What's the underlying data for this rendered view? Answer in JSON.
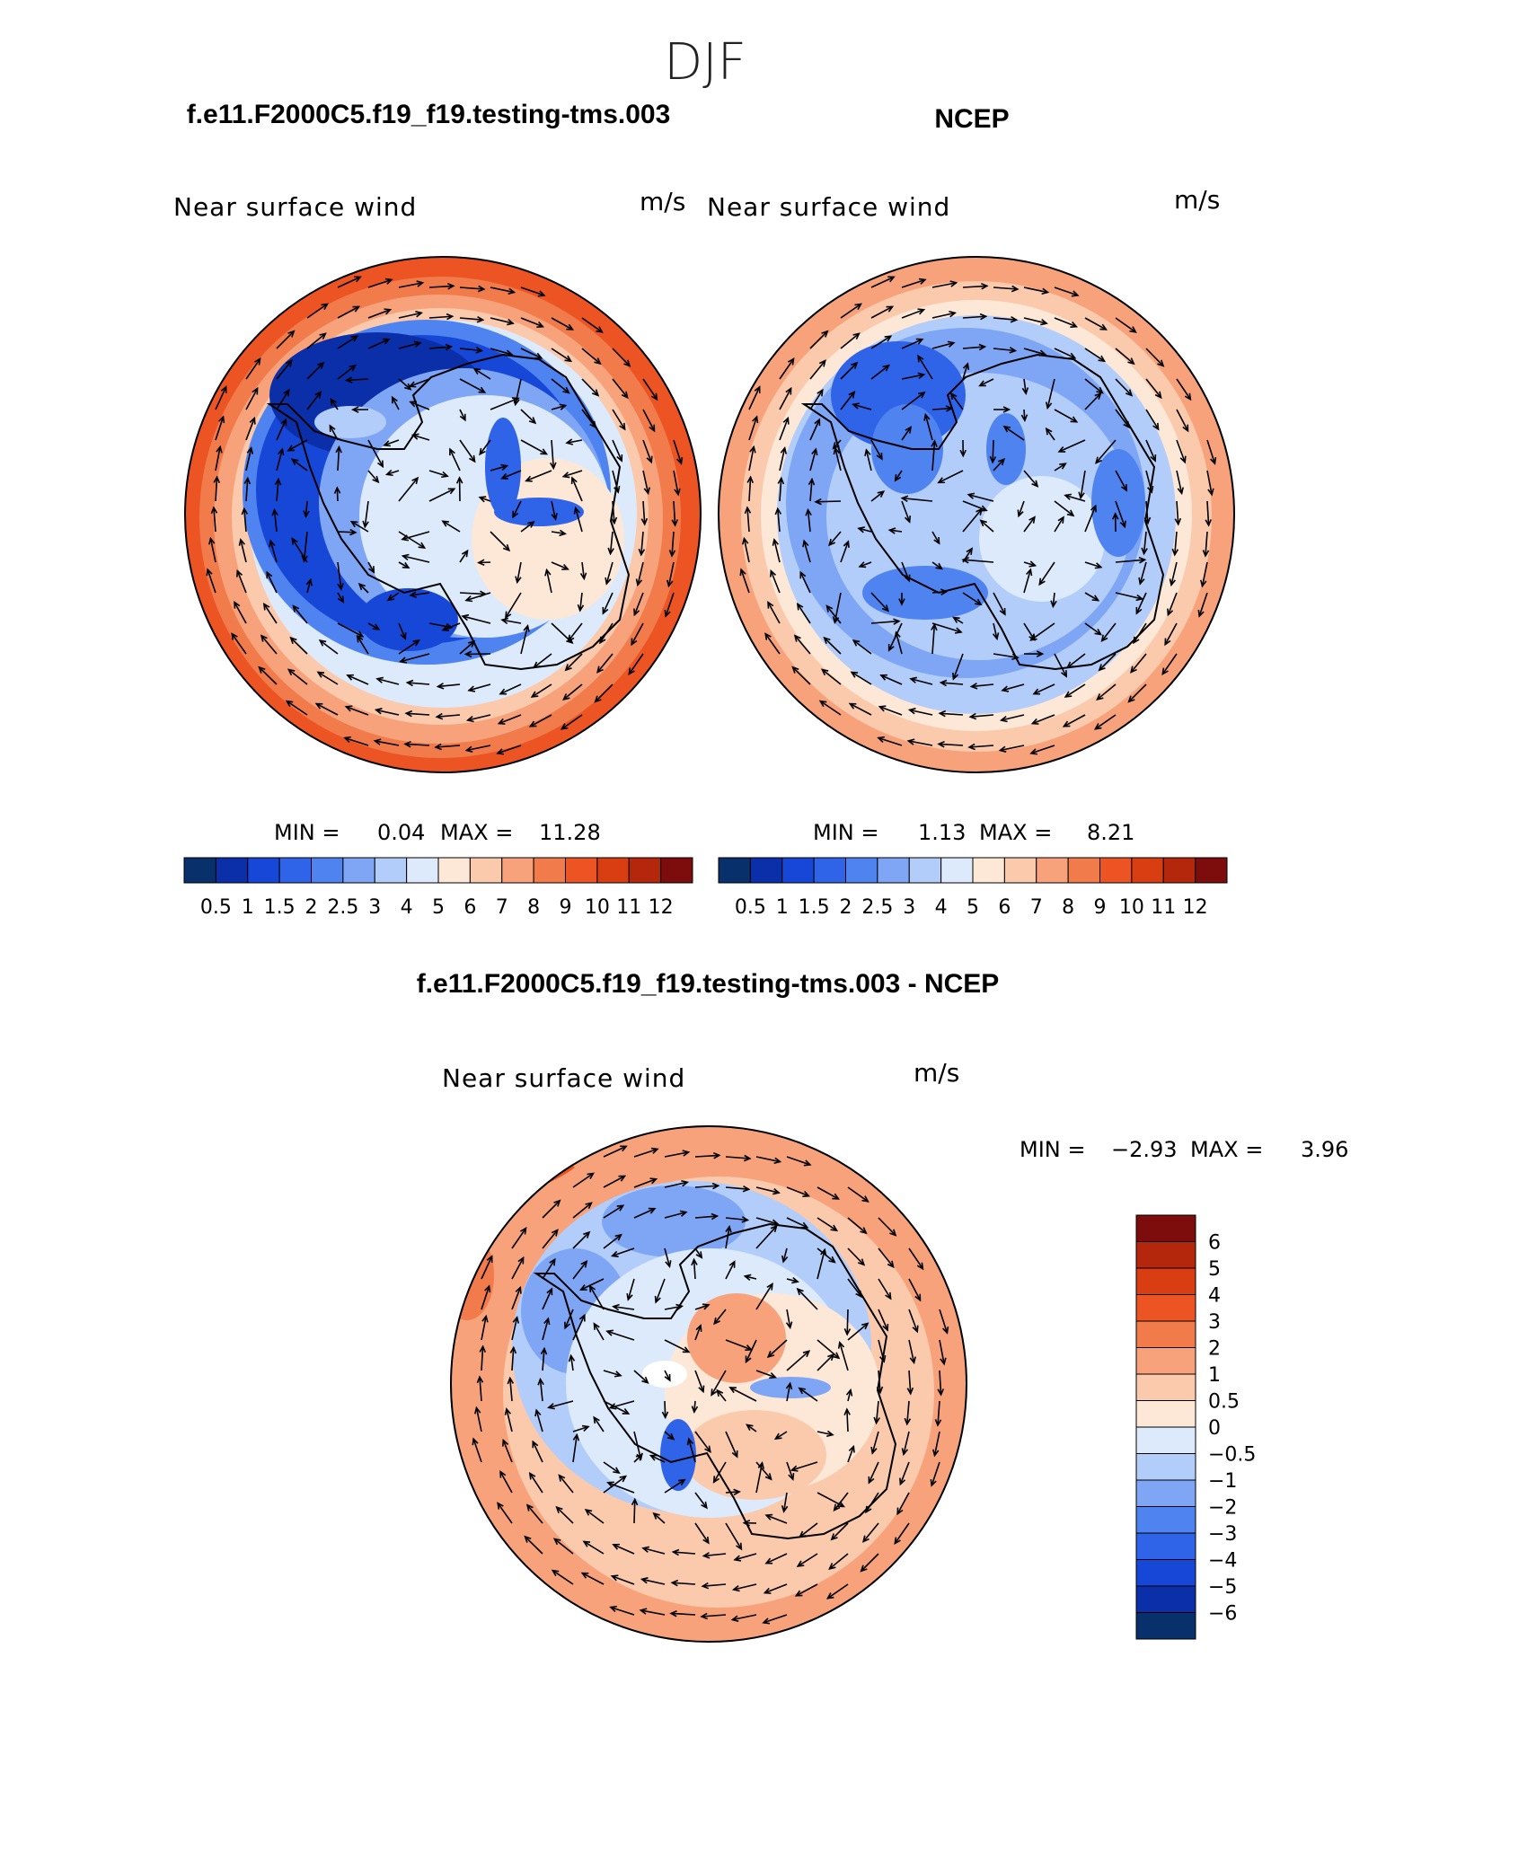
{
  "page": {
    "title": "DJF"
  },
  "panels": [
    {
      "case_title": "f.e11.F2000C5.f19_f19.testing-tms.003",
      "variable": "Near surface wind",
      "units": "m/s",
      "stats": {
        "min_label": "MIN =",
        "min": "0.04",
        "max_label": "MAX =",
        "max": "11.28"
      }
    },
    {
      "case_title": "NCEP",
      "variable": "Near surface wind",
      "units": "m/s",
      "stats": {
        "min_label": "MIN =",
        "min": "1.13",
        "max_label": "MAX =",
        "max": "8.21"
      }
    },
    {
      "case_title": "f.e11.F2000C5.f19_f19.testing-tms.003 - NCEP",
      "variable": "Near surface wind",
      "units": "m/s",
      "stats": {
        "min_label": "MIN =",
        "min": "−2.93",
        "max_label": "MAX =",
        "max": "3.96"
      }
    }
  ],
  "colorbar_abs": {
    "labels": [
      "0.5",
      "1",
      "1.5",
      "2",
      "2.5",
      "3",
      "4",
      "5",
      "6",
      "7",
      "8",
      "9",
      "10",
      "11",
      "12"
    ],
    "colors": [
      "#08306b",
      "#0a2fa8",
      "#1747d6",
      "#2f63e8",
      "#4f83f0",
      "#7ea6f5",
      "#b2cdf9",
      "#dceafb",
      "#fde8d8",
      "#fbc9ac",
      "#f7a27a",
      "#f27b4c",
      "#ec5424",
      "#d93d12",
      "#b4270c",
      "#7d0c0c"
    ]
  },
  "colorbar_diff": {
    "labels": [
      "6",
      "5",
      "4",
      "3",
      "2",
      "1",
      "0.5",
      "0",
      "−0.5",
      "−1",
      "−2",
      "−3",
      "−4",
      "−5",
      "−6"
    ],
    "colors": [
      "#7d0c0c",
      "#b4270c",
      "#d93d12",
      "#ec5424",
      "#f27b4c",
      "#f7a27a",
      "#fbc9ac",
      "#fde8d8",
      "#dceafb",
      "#b2cdf9",
      "#7ea6f5",
      "#4f83f0",
      "#2f63e8",
      "#1747d6",
      "#0a2fa8",
      "#08306b"
    ]
  }
}
